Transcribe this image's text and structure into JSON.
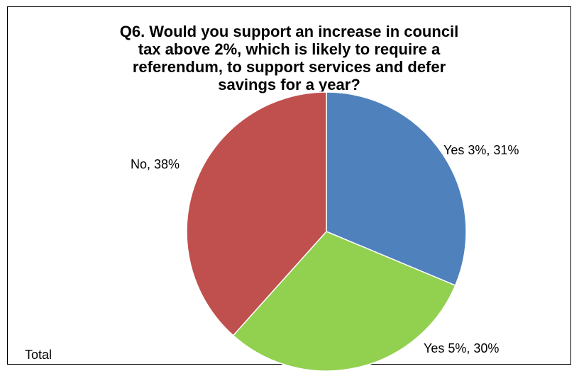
{
  "chart_data": {
    "type": "pie",
    "title_lines": [
      "Q6. Would you support an increase in council",
      "tax above 2%,  which is likely to require a",
      "referendum, to support services and defer",
      "savings for a year?"
    ],
    "slices": [
      {
        "category": "Yes 3%",
        "value": 31,
        "label": "Yes 3%, 31%",
        "color": "#4F81BD"
      },
      {
        "category": "Yes 5%",
        "value": 30,
        "label": "Yes 5%, 30%",
        "color": "#92D050"
      },
      {
        "category": "No",
        "value": 38,
        "label": "No, 38%",
        "color": "#C0504D"
      }
    ],
    "footer": "Total"
  }
}
